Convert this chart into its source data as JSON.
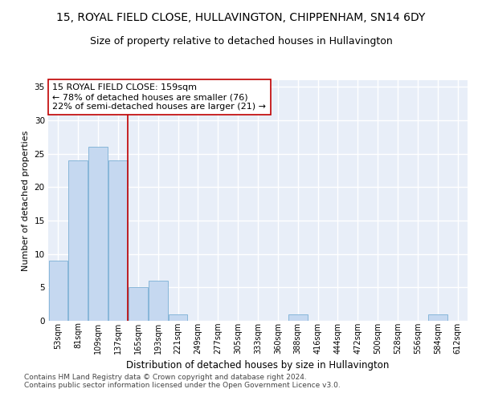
{
  "title_line1": "15, ROYAL FIELD CLOSE, HULLAVINGTON, CHIPPENHAM, SN14 6DY",
  "title_line2": "Size of property relative to detached houses in Hullavington",
  "xlabel": "Distribution of detached houses by size in Hullavington",
  "ylabel": "Number of detached properties",
  "categories": [
    "53sqm",
    "81sqm",
    "109sqm",
    "137sqm",
    "165sqm",
    "193sqm",
    "221sqm",
    "249sqm",
    "277sqm",
    "305sqm",
    "333sqm",
    "360sqm",
    "388sqm",
    "416sqm",
    "444sqm",
    "472sqm",
    "500sqm",
    "528sqm",
    "556sqm",
    "584sqm",
    "612sqm"
  ],
  "values": [
    9,
    24,
    26,
    24,
    5,
    6,
    1,
    0,
    0,
    0,
    0,
    0,
    1,
    0,
    0,
    0,
    0,
    0,
    0,
    1,
    0
  ],
  "bar_color": "#c5d8f0",
  "bar_edge_color": "#7bafd4",
  "vline_color": "#c00000",
  "annotation_text": "15 ROYAL FIELD CLOSE: 159sqm\n← 78% of detached houses are smaller (76)\n22% of semi-detached houses are larger (21) →",
  "annotation_box_color": "#ffffff",
  "annotation_box_edge_color": "#c00000",
  "ylim": [
    0,
    36
  ],
  "yticks": [
    0,
    5,
    10,
    15,
    20,
    25,
    30,
    35
  ],
  "bg_color": "#e8eef8",
  "footer_text": "Contains HM Land Registry data © Crown copyright and database right 2024.\nContains public sector information licensed under the Open Government Licence v3.0.",
  "title1_fontsize": 10,
  "title2_fontsize": 9,
  "xlabel_fontsize": 8.5,
  "ylabel_fontsize": 8,
  "annotation_fontsize": 8,
  "footer_fontsize": 6.5
}
